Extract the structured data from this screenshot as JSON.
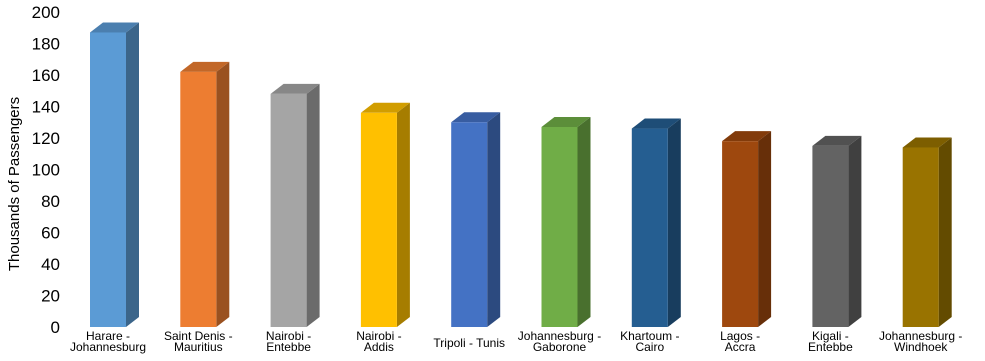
{
  "chart_data": {
    "type": "bar",
    "title": "",
    "xlabel": "",
    "ylabel": "Thousands of Passengers",
    "ylim": [
      0,
      200
    ],
    "y_ticks": [
      "0",
      "20",
      "40",
      "60",
      "80",
      "100",
      "120",
      "140",
      "160",
      "180",
      "200"
    ],
    "grid": false,
    "style": "3d",
    "categories": [
      [
        "Harare -",
        "Johannesburg"
      ],
      [
        "Saint Denis -",
        "Mauritius"
      ],
      [
        "Nairobi -",
        "Entebbe"
      ],
      [
        "Nairobi -",
        "Addis"
      ],
      [
        "Tripoli - Tunis"
      ],
      [
        "Johannesburg -",
        "Gaborone"
      ],
      [
        "Khartoum -",
        "Cairo"
      ],
      [
        "Lagos -",
        "Accra"
      ],
      [
        "Kigali -",
        "Entebbe"
      ],
      [
        "Johannesburg -",
        "Windhoek"
      ]
    ],
    "values": [
      187,
      162,
      148,
      136,
      130,
      127,
      126,
      118,
      115,
      114
    ],
    "colors": [
      "#5b9bd5",
      "#ed7d31",
      "#a5a5a5",
      "#ffc000",
      "#4472c4",
      "#70ad47",
      "#255e91",
      "#9e480e",
      "#636363",
      "#997300"
    ]
  }
}
